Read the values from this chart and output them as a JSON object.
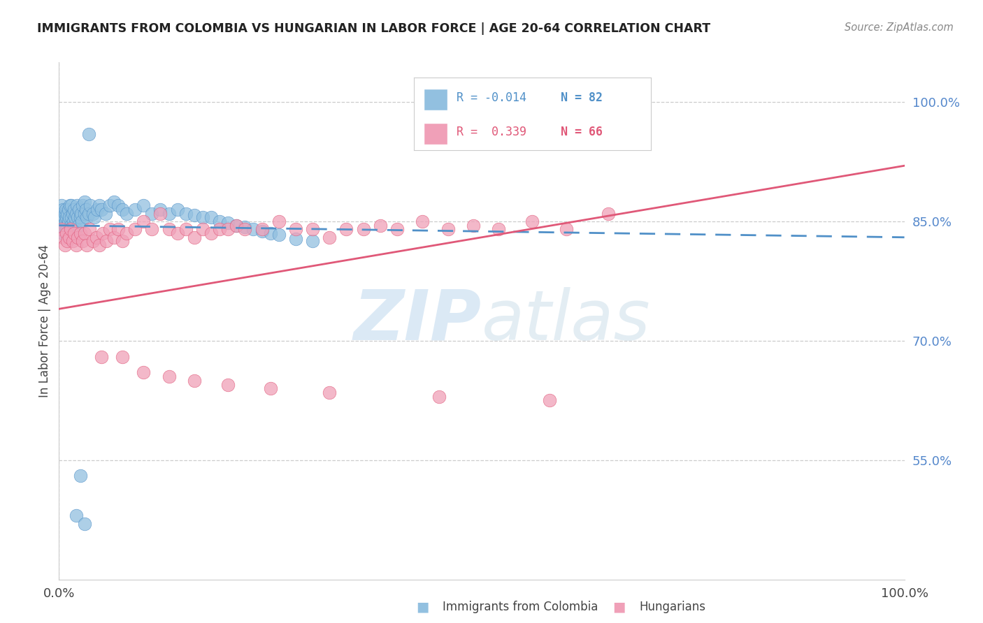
{
  "title": "IMMIGRANTS FROM COLOMBIA VS HUNGARIAN IN LABOR FORCE | AGE 20-64 CORRELATION CHART",
  "source": "Source: ZipAtlas.com",
  "ylabel": "In Labor Force | Age 20-64",
  "xlim": [
    0.0,
    1.0
  ],
  "ylim": [
    0.4,
    1.05
  ],
  "yticks": [
    0.55,
    0.7,
    0.85,
    1.0
  ],
  "ytick_labels": [
    "55.0%",
    "70.0%",
    "85.0%",
    "100.0%"
  ],
  "xtick_labels": [
    "0.0%",
    "100.0%"
  ],
  "colombia_R": "-0.014",
  "colombia_N": "82",
  "hungarian_R": "0.339",
  "hungarian_N": "66",
  "colombia_color": "#92c0e0",
  "hungarian_color": "#f0a0b8",
  "colombia_line_color": "#5090c8",
  "hungarian_line_color": "#e05878",
  "watermark_color": "#d0e8f8",
  "colombia_x": [
    0.002,
    0.003,
    0.003,
    0.004,
    0.004,
    0.005,
    0.005,
    0.005,
    0.006,
    0.006,
    0.007,
    0.007,
    0.008,
    0.008,
    0.009,
    0.009,
    0.01,
    0.01,
    0.011,
    0.011,
    0.012,
    0.012,
    0.013,
    0.014,
    0.015,
    0.015,
    0.016,
    0.017,
    0.018,
    0.018,
    0.019,
    0.02,
    0.02,
    0.021,
    0.022,
    0.023,
    0.024,
    0.025,
    0.026,
    0.027,
    0.028,
    0.03,
    0.03,
    0.032,
    0.033,
    0.035,
    0.037,
    0.04,
    0.042,
    0.045,
    0.048,
    0.05,
    0.055,
    0.06,
    0.065,
    0.07,
    0.075,
    0.08,
    0.09,
    0.1,
    0.11,
    0.12,
    0.13,
    0.14,
    0.15,
    0.16,
    0.17,
    0.18,
    0.19,
    0.2,
    0.21,
    0.22,
    0.23,
    0.24,
    0.25,
    0.26,
    0.28,
    0.3,
    0.02,
    0.025,
    0.03,
    0.035
  ],
  "colombia_y": [
    0.84,
    0.855,
    0.87,
    0.845,
    0.86,
    0.835,
    0.85,
    0.865,
    0.84,
    0.855,
    0.845,
    0.86,
    0.85,
    0.865,
    0.84,
    0.855,
    0.845,
    0.86,
    0.85,
    0.865,
    0.84,
    0.855,
    0.87,
    0.845,
    0.855,
    0.87,
    0.86,
    0.85,
    0.865,
    0.845,
    0.855,
    0.84,
    0.86,
    0.87,
    0.855,
    0.845,
    0.865,
    0.855,
    0.86,
    0.85,
    0.87,
    0.86,
    0.875,
    0.865,
    0.855,
    0.86,
    0.87,
    0.86,
    0.855,
    0.865,
    0.87,
    0.865,
    0.86,
    0.87,
    0.875,
    0.87,
    0.865,
    0.86,
    0.865,
    0.87,
    0.86,
    0.865,
    0.86,
    0.865,
    0.86,
    0.858,
    0.855,
    0.855,
    0.85,
    0.848,
    0.845,
    0.843,
    0.84,
    0.838,
    0.835,
    0.833,
    0.828,
    0.825,
    0.48,
    0.53,
    0.47,
    0.96
  ],
  "hungarian_x": [
    0.003,
    0.005,
    0.007,
    0.009,
    0.01,
    0.012,
    0.014,
    0.016,
    0.018,
    0.02,
    0.022,
    0.025,
    0.028,
    0.03,
    0.033,
    0.036,
    0.04,
    0.044,
    0.048,
    0.052,
    0.056,
    0.06,
    0.065,
    0.07,
    0.075,
    0.08,
    0.09,
    0.1,
    0.11,
    0.12,
    0.13,
    0.14,
    0.15,
    0.16,
    0.17,
    0.18,
    0.19,
    0.2,
    0.21,
    0.22,
    0.24,
    0.26,
    0.28,
    0.3,
    0.32,
    0.34,
    0.36,
    0.38,
    0.4,
    0.43,
    0.46,
    0.49,
    0.52,
    0.56,
    0.6,
    0.65,
    0.05,
    0.075,
    0.1,
    0.13,
    0.16,
    0.2,
    0.25,
    0.32,
    0.45,
    0.58
  ],
  "hungarian_y": [
    0.84,
    0.83,
    0.82,
    0.835,
    0.825,
    0.83,
    0.84,
    0.825,
    0.835,
    0.82,
    0.83,
    0.835,
    0.825,
    0.835,
    0.82,
    0.84,
    0.825,
    0.83,
    0.82,
    0.835,
    0.825,
    0.84,
    0.83,
    0.84,
    0.825,
    0.835,
    0.84,
    0.85,
    0.84,
    0.86,
    0.84,
    0.835,
    0.84,
    0.83,
    0.84,
    0.835,
    0.84,
    0.84,
    0.845,
    0.84,
    0.84,
    0.85,
    0.84,
    0.84,
    0.83,
    0.84,
    0.84,
    0.845,
    0.84,
    0.85,
    0.84,
    0.845,
    0.84,
    0.85,
    0.84,
    0.86,
    0.68,
    0.68,
    0.66,
    0.655,
    0.65,
    0.645,
    0.64,
    0.635,
    0.63,
    0.625
  ],
  "colombia_line_x": [
    0.0,
    1.0
  ],
  "colombia_line_y": [
    0.845,
    0.83
  ],
  "hungarian_line_x": [
    0.0,
    1.0
  ],
  "hungarian_line_y": [
    0.74,
    0.92
  ]
}
